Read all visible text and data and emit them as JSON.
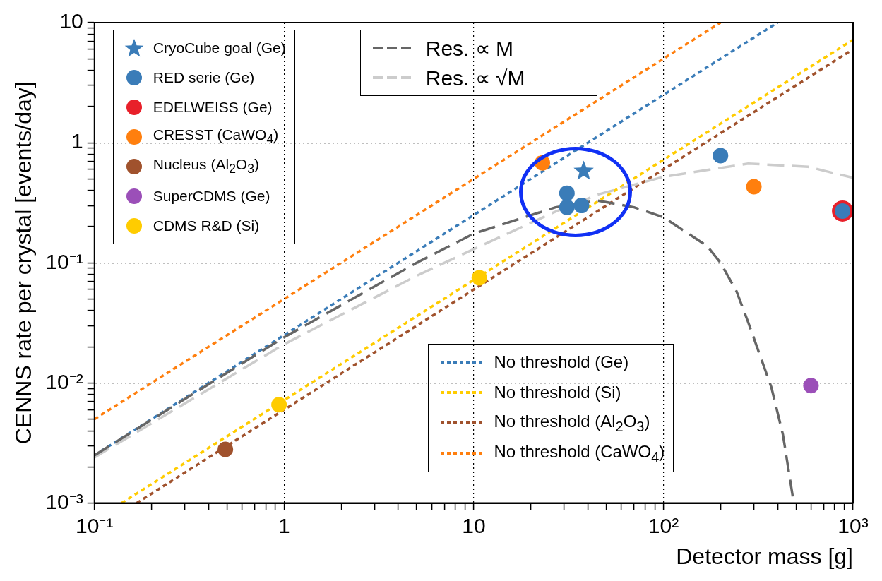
{
  "chart_data": {
    "type": "scatter",
    "xlabel": "Detector mass [g]",
    "ylabel": "CENNS rate per crystal [events/day]",
    "log": "xy",
    "grid": true,
    "legend": "top left",
    "xlim": [
      0.1,
      1000
    ],
    "ylim": [
      0.001,
      10
    ],
    "xticks": [
      {
        "value": 0.1,
        "label": "10⁻¹"
      },
      {
        "value": 0.2,
        "label": null
      },
      {
        "value": 0.3,
        "label": null
      },
      {
        "value": 0.4,
        "label": null
      },
      {
        "value": 0.5,
        "label": null
      },
      {
        "value": 0.6,
        "label": null
      },
      {
        "value": 0.7,
        "label": null
      },
      {
        "value": 0.8,
        "label": null
      },
      {
        "value": 0.9,
        "label": null
      },
      1,
      {
        "value": 2,
        "label": null
      },
      {
        "value": 3,
        "label": null
      },
      {
        "value": 4,
        "label": null
      },
      {
        "value": 5,
        "label": null
      },
      {
        "value": 6,
        "label": null
      },
      {
        "value": 7,
        "label": null
      },
      {
        "value": 8,
        "label": null
      },
      {
        "value": 9,
        "label": null
      },
      10,
      {
        "value": 20,
        "label": null
      },
      {
        "value": 30,
        "label": null
      },
      {
        "value": 40,
        "label": null
      },
      {
        "value": 50,
        "label": null
      },
      {
        "value": 60,
        "label": null
      },
      {
        "value": 70,
        "label": null
      },
      {
        "value": 80,
        "label": null
      },
      {
        "value": 90,
        "label": null
      },
      {
        "value": 100,
        "label": "10²"
      },
      {
        "value": 200,
        "label": null
      },
      {
        "value": 300,
        "label": null
      },
      {
        "value": 400,
        "label": null
      },
      {
        "value": 500,
        "label": null
      },
      {
        "value": 600,
        "label": null
      },
      {
        "value": 700,
        "label": null
      },
      {
        "value": 800,
        "label": null
      },
      {
        "value": 900,
        "label": null
      },
      {
        "value": 1000,
        "label": "10³"
      }
    ],
    "yticks": [
      {
        "value": 0.001,
        "label": "10⁻³"
      },
      {
        "value": 0.002,
        "label": null
      },
      {
        "value": 0.003,
        "label": null
      },
      {
        "value": 0.004,
        "label": null
      },
      {
        "value": 0.005,
        "label": null
      },
      {
        "value": 0.006,
        "label": null
      },
      {
        "value": 0.007,
        "label": null
      },
      {
        "value": 0.008,
        "label": null
      },
      {
        "value": 0.009,
        "label": null
      },
      {
        "value": 0.01,
        "label": "10⁻²"
      },
      {
        "value": 0.02,
        "label": null
      },
      {
        "value": 0.03,
        "label": null
      },
      {
        "value": 0.04,
        "label": null
      },
      {
        "value": 0.05,
        "label": null
      },
      {
        "value": 0.06,
        "label": null
      },
      {
        "value": 0.07,
        "label": null
      },
      {
        "value": 0.08,
        "label": null
      },
      {
        "value": 0.09,
        "label": null
      },
      {
        "value": 0.1,
        "label": "10⁻¹"
      },
      {
        "value": 0.2,
        "label": null
      },
      {
        "value": 0.3,
        "label": null
      },
      {
        "value": 0.4,
        "label": null
      },
      {
        "value": 0.5,
        "label": null
      },
      {
        "value": 0.6,
        "label": null
      },
      {
        "value": 0.7,
        "label": null
      },
      {
        "value": 0.8,
        "label": null
      },
      {
        "value": 0.9,
        "label": null
      },
      1,
      {
        "value": 2,
        "label": null
      },
      {
        "value": 3,
        "label": null
      },
      {
        "value": 4,
        "label": null
      },
      {
        "value": 5,
        "label": null
      },
      {
        "value": 6,
        "label": null
      },
      {
        "value": 7,
        "label": null
      },
      {
        "value": 8,
        "label": null
      },
      {
        "value": 9,
        "label": null
      },
      10
    ],
    "series": [
      {
        "name": "CryoCube goal (Ge)",
        "marker": "star",
        "color": "#3a7cb8",
        "x": [
          38
        ],
        "values": [
          0.58
        ]
      },
      {
        "name": "RED serie (Ge)",
        "marker": "circle",
        "color": "#3a7cb8",
        "x": [
          31,
          31,
          37,
          200,
          880
        ],
        "values": [
          0.38,
          0.29,
          0.3,
          0.78,
          0.27
        ]
      },
      {
        "name": "EDELWEISS (Ge)",
        "marker": "circle",
        "color": "#e8202a",
        "x": [
          880
        ],
        "values": [
          0.27
        ]
      },
      {
        "name": "CRESST (CaWO$_{4}$)",
        "marker": "circle",
        "color": "#ff7f0e",
        "x": [
          23,
          300
        ],
        "values": [
          0.68,
          0.43
        ]
      },
      {
        "name": "Nucleus (Al$_{2}$O$_{3}$)",
        "marker": "circle",
        "color": "#a0522d",
        "x": [
          0.49
        ],
        "values": [
          0.0028
        ]
      },
      {
        "name": "SuperCDMS (Ge)",
        "marker": "circle",
        "color": "#9b4fb8",
        "x": [
          600
        ],
        "values": [
          0.0095
        ]
      },
      {
        "name": "CDMS R&D (Si)",
        "marker": "circle",
        "color": "#ffcc00",
        "x": [
          0.94,
          10.7
        ],
        "values": [
          0.0066,
          0.075
        ]
      },
      {
        "name": "Res. ∝ M",
        "type": "line",
        "marker": "none",
        "line_style": "dashed",
        "color": "#666666",
        "x": [
          0.1,
          1,
          5,
          10,
          27,
          45,
          70,
          100,
          170,
          200,
          243,
          280,
          371,
          427,
          487
        ],
        "values": [
          0.0025,
          0.024,
          0.1,
          0.175,
          0.29,
          0.33,
          0.29,
          0.24,
          0.138,
          0.1,
          0.058,
          0.032,
          0.0092,
          0.0037,
          0.001
        ]
      },
      {
        "name": "Res. ∝ √M",
        "type": "line",
        "marker": "none",
        "line_style": "dashed",
        "color": "#cccccc",
        "x": [
          0.1,
          1,
          5,
          10,
          26,
          45,
          100,
          280,
          580,
          1000
        ],
        "values": [
          0.0024,
          0.021,
          0.078,
          0.13,
          0.26,
          0.37,
          0.52,
          0.67,
          0.63,
          0.51
        ]
      },
      {
        "name": "No threshold (Ge)",
        "type": "line",
        "marker": "none",
        "line_style": "dotted",
        "color": "#3a7cb8",
        "x": [
          0.1,
          400
        ],
        "values": [
          0.0025,
          10
        ]
      },
      {
        "name": "No threshold (Si)",
        "type": "line",
        "marker": "none",
        "line_style": "dotted",
        "color": "#ffcc00",
        "x": [
          0.139,
          1000
        ],
        "values": [
          0.001,
          7.2
        ]
      },
      {
        "name": "No threshold (Al$_{2}$O$_{3}$)",
        "type": "line",
        "marker": "none",
        "line_style": "dotted",
        "color": "#a0522d",
        "x": [
          0.167,
          1000
        ],
        "values": [
          0.001,
          6
        ]
      },
      {
        "name": "No threshold (CaWO$_{4}$)",
        "type": "line",
        "marker": "none",
        "line_style": "dotted",
        "color": "#ff7f0e",
        "x": [
          0.1,
          200
        ],
        "values": [
          0.005,
          10
        ]
      }
    ]
  }
}
